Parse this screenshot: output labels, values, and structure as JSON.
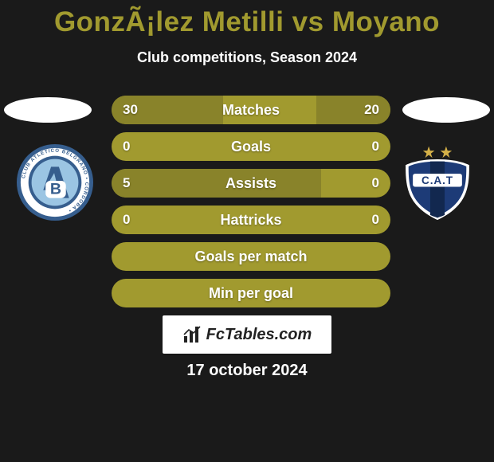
{
  "background_color": "#1a1a1a",
  "title": {
    "text": "GonzÃ¡lez Metilli vs Moyano",
    "color": "#a19a2f",
    "font_size": 35,
    "font_weight": 900
  },
  "subtitle": {
    "text": "Club competitions, Season 2024",
    "color": "#ffffff",
    "font_size": 18
  },
  "players": {
    "left": {
      "avatar_color": "#ffffff",
      "crest": {
        "name": "belgrano",
        "outer_ring": "#365e8e",
        "mid_ring": "#ffffff",
        "inner_ring": "#365e8e",
        "center": "#9bc5e3",
        "letter_a": "#365e8e",
        "letter_b": "#ffffff",
        "ring_text": "CLUB ATLETICO BELGRANO • CORDOBA •"
      }
    },
    "right": {
      "avatar_color": "#ffffff",
      "crest": {
        "name": "talleres",
        "badge_fill": "#1d3b77",
        "stripe": "#12284f",
        "outline": "#ffffff",
        "text_bg": "#ffffff",
        "text": "C.A.T",
        "text_color": "#1d3b77",
        "star_color": "#d4b048",
        "star_count": 2
      }
    }
  },
  "bars": {
    "bar_bg": "#a19a2f",
    "bar_highlight": "#89832a",
    "bar_fontsize": 18,
    "bar_text_color": "#ffffff",
    "rows": [
      {
        "label": "Matches",
        "left_val": "30",
        "right_val": "20",
        "left_width_pct": 40,
        "right_width_pct": 26.67
      },
      {
        "label": "Goals",
        "left_val": "0",
        "right_val": "0",
        "left_width_pct": 0,
        "right_width_pct": 0
      },
      {
        "label": "Assists",
        "left_val": "5",
        "right_val": "0",
        "left_width_pct": 75,
        "right_width_pct": 0
      },
      {
        "label": "Hattricks",
        "left_val": "0",
        "right_val": "0",
        "left_width_pct": 0,
        "right_width_pct": 0
      },
      {
        "label": "Goals per match",
        "left_val": "",
        "right_val": "",
        "left_width_pct": 0,
        "right_width_pct": 0
      },
      {
        "label": "Min per goal",
        "left_val": "",
        "right_val": "",
        "left_width_pct": 0,
        "right_width_pct": 0
      }
    ]
  },
  "fctables_badge": {
    "text": "FcTables.com",
    "bg": "#ffffff",
    "text_color": "#222222",
    "icon_color": "#222222",
    "font_size": 20
  },
  "date": {
    "text": "17 october 2024",
    "color": "#ffffff",
    "font_size": 20
  }
}
